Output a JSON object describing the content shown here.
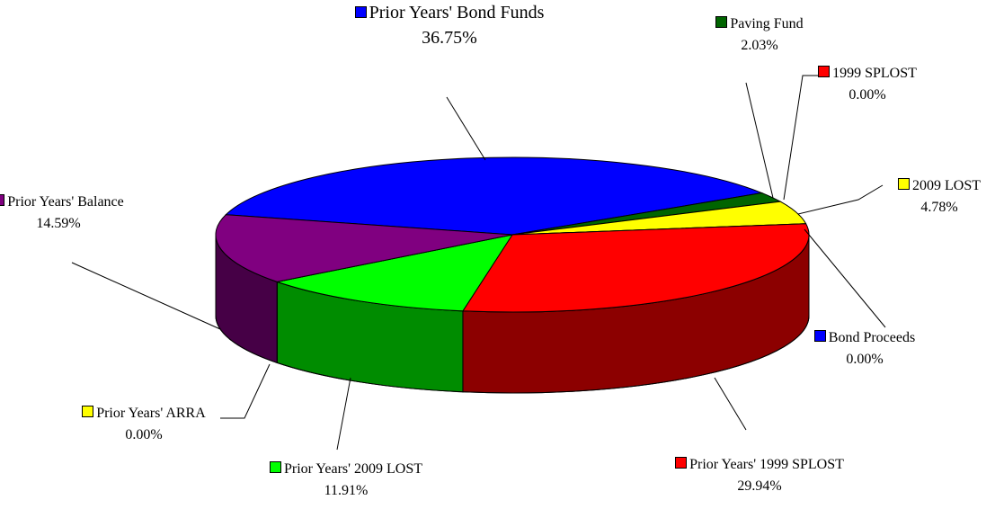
{
  "chart_data": {
    "type": "pie3d",
    "categories": [
      "Prior Years' Bond Funds",
      "Paving Fund",
      "1999 SPLOST",
      "2009 LOST",
      "Bond Proceeds",
      "Prior Years' 1999 SPLOST",
      "Prior Years' 2009 LOST",
      "Prior Years' ARRA",
      "Prior Years' Balance"
    ],
    "values": [
      36.75,
      2.03,
      0.0,
      4.78,
      0.0,
      29.94,
      11.91,
      0.0,
      14.59
    ],
    "value_labels": [
      "36.75%",
      "2.03%",
      "0.00%",
      "4.78%",
      "0.00%",
      "29.94%",
      "11.91%",
      "0.00%",
      "14.59%"
    ],
    "colors": [
      "#0000ff",
      "#006400",
      "#ff0000",
      "#ffff00",
      "#0000ff",
      "#ff0000",
      "#00ff00",
      "#ffff00",
      "#800080"
    ]
  }
}
